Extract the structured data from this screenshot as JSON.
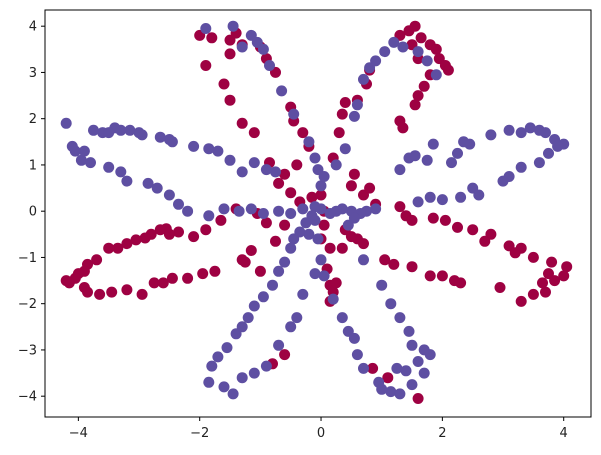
{
  "chart_data": {
    "type": "scatter",
    "title": "",
    "xlabel": "",
    "ylabel": "",
    "xlim": [
      -4.55,
      4.45
    ],
    "ylim": [
      -4.45,
      4.35
    ],
    "xticks": [
      -4,
      -2,
      0,
      2,
      4
    ],
    "yticks": [
      -4,
      -3,
      -2,
      -1,
      0,
      1,
      2,
      3,
      4
    ],
    "grid": false,
    "legend": "none",
    "series": [
      {
        "color": "#9e0142",
        "points": [
          [
            -2.0,
            3.8
          ],
          [
            -1.8,
            3.75
          ],
          [
            -1.5,
            3.7
          ],
          [
            -1.4,
            3.85
          ],
          [
            -1.3,
            3.6
          ],
          [
            -1.5,
            3.4
          ],
          [
            -1.9,
            3.15
          ],
          [
            -1.6,
            2.75
          ],
          [
            -1.5,
            2.4
          ],
          [
            -1.3,
            1.9
          ],
          [
            -1.1,
            1.7
          ],
          [
            -1.0,
            3.55
          ],
          [
            -0.9,
            3.3
          ],
          [
            -0.75,
            3.0
          ],
          [
            -0.5,
            2.25
          ],
          [
            -0.45,
            1.95
          ],
          [
            -0.3,
            1.7
          ],
          [
            -0.2,
            1.4
          ],
          [
            -0.4,
            1.0
          ],
          [
            -0.6,
            0.8
          ],
          [
            -0.85,
            1.05
          ],
          [
            -0.7,
            0.6
          ],
          [
            -0.5,
            0.4
          ],
          [
            -0.35,
            0.2
          ],
          [
            -0.15,
            0.3
          ],
          [
            0.0,
            0.35
          ],
          [
            0.05,
            0.0
          ],
          [
            0.2,
            1.15
          ],
          [
            0.3,
            1.7
          ],
          [
            0.35,
            2.1
          ],
          [
            0.6,
            2.4
          ],
          [
            0.75,
            2.75
          ],
          [
            0.8,
            3.05
          ],
          [
            0.4,
            2.35
          ],
          [
            1.3,
            3.8
          ],
          [
            1.45,
            3.9
          ],
          [
            1.55,
            4.0
          ],
          [
            1.65,
            3.75
          ],
          [
            1.8,
            3.6
          ],
          [
            1.9,
            3.5
          ],
          [
            1.95,
            3.3
          ],
          [
            2.05,
            3.15
          ],
          [
            2.1,
            3.05
          ],
          [
            1.8,
            2.95
          ],
          [
            1.7,
            2.7
          ],
          [
            1.6,
            2.5
          ],
          [
            1.55,
            2.3
          ],
          [
            1.3,
            1.95
          ],
          [
            1.35,
            1.8
          ],
          [
            1.6,
            3.3
          ],
          [
            1.5,
            3.6
          ],
          [
            0.9,
            0.15
          ],
          [
            0.7,
            0.35
          ],
          [
            0.5,
            0.55
          ],
          [
            0.55,
            0.8
          ],
          [
            0.8,
            0.5
          ],
          [
            1.3,
            0.1
          ],
          [
            1.4,
            -0.1
          ],
          [
            1.5,
            -0.2
          ],
          [
            1.85,
            -0.15
          ],
          [
            2.05,
            -0.2
          ],
          [
            2.25,
            -0.35
          ],
          [
            2.5,
            -0.4
          ],
          [
            2.8,
            -0.5
          ],
          [
            2.7,
            -0.65
          ],
          [
            3.1,
            -0.75
          ],
          [
            3.3,
            -0.8
          ],
          [
            3.2,
            -0.9
          ],
          [
            3.5,
            -1.0
          ],
          [
            3.8,
            -1.1
          ],
          [
            3.75,
            -1.35
          ],
          [
            4.05,
            -1.2
          ],
          [
            4.0,
            -1.4
          ],
          [
            3.65,
            -1.55
          ],
          [
            3.7,
            -1.75
          ],
          [
            3.5,
            -1.8
          ],
          [
            3.85,
            -1.5
          ],
          [
            3.3,
            -1.95
          ],
          [
            2.95,
            -1.65
          ],
          [
            2.3,
            -1.55
          ],
          [
            2.2,
            -1.5
          ],
          [
            2.0,
            -1.4
          ],
          [
            1.8,
            -1.4
          ],
          [
            1.5,
            -1.2
          ],
          [
            1.2,
            -1.15
          ],
          [
            1.05,
            -1.05
          ],
          [
            0.6,
            -0.6
          ],
          [
            0.5,
            -0.55
          ],
          [
            0.7,
            -0.7
          ],
          [
            0.4,
            -0.4
          ],
          [
            0.35,
            -0.8
          ],
          [
            0.15,
            -0.8
          ],
          [
            0.0,
            -0.6
          ],
          [
            0.05,
            -0.3
          ],
          [
            0.1,
            -1.25
          ],
          [
            0.15,
            -1.6
          ],
          [
            0.2,
            -1.75
          ],
          [
            0.25,
            -1.55
          ],
          [
            0.15,
            -1.95
          ],
          [
            0.85,
            -3.4
          ],
          [
            1.6,
            -4.05
          ],
          [
            1.1,
            -3.6
          ],
          [
            -0.8,
            -3.3
          ],
          [
            -0.6,
            -3.1
          ],
          [
            -1.0,
            -1.3
          ],
          [
            -1.25,
            -1.1
          ],
          [
            -1.15,
            -0.85
          ],
          [
            -0.75,
            -0.65
          ],
          [
            -0.6,
            -0.3
          ],
          [
            -0.9,
            -0.25
          ],
          [
            -1.05,
            -0.05
          ],
          [
            -1.4,
            0.05
          ],
          [
            -1.65,
            -0.2
          ],
          [
            -1.9,
            -0.4
          ],
          [
            -2.1,
            -0.55
          ],
          [
            -2.35,
            -0.45
          ],
          [
            -2.5,
            -0.5
          ],
          [
            -2.55,
            -0.38
          ],
          [
            -2.65,
            -0.4
          ],
          [
            -2.8,
            -0.5
          ],
          [
            -2.9,
            -0.58
          ],
          [
            -3.05,
            -0.62
          ],
          [
            -3.2,
            -0.7
          ],
          [
            -3.35,
            -0.8
          ],
          [
            -3.5,
            -0.8
          ],
          [
            -3.7,
            -1.05
          ],
          [
            -3.85,
            -1.15
          ],
          [
            -3.9,
            -1.3
          ],
          [
            -4.0,
            -1.35
          ],
          [
            -4.05,
            -1.45
          ],
          [
            -4.15,
            -1.55
          ],
          [
            -4.2,
            -1.5
          ],
          [
            -3.9,
            -1.65
          ],
          [
            -3.85,
            -1.75
          ],
          [
            -3.65,
            -1.8
          ],
          [
            -3.45,
            -1.75
          ],
          [
            -3.2,
            -1.7
          ],
          [
            -2.95,
            -1.8
          ],
          [
            -2.75,
            -1.55
          ],
          [
            -2.6,
            -1.55
          ],
          [
            -2.45,
            -1.45
          ],
          [
            -2.2,
            -1.45
          ],
          [
            -1.95,
            -1.35
          ],
          [
            -1.75,
            -1.3
          ],
          [
            -1.3,
            -1.05
          ]
        ]
      },
      {
        "color": "#5e4fa2",
        "points": [
          [
            -1.9,
            3.95
          ],
          [
            -1.45,
            4.0
          ],
          [
            -1.3,
            3.55
          ],
          [
            -1.15,
            3.8
          ],
          [
            -1.05,
            3.65
          ],
          [
            -0.95,
            3.5
          ],
          [
            -0.85,
            3.15
          ],
          [
            -0.65,
            2.6
          ],
          [
            -0.45,
            2.1
          ],
          [
            -0.2,
            1.5
          ],
          [
            -0.1,
            1.15
          ],
          [
            -0.05,
            0.9
          ],
          [
            0.0,
            0.55
          ],
          [
            0.05,
            0.75
          ],
          [
            0.25,
            1.0
          ],
          [
            0.4,
            1.35
          ],
          [
            0.55,
            2.05
          ],
          [
            0.6,
            2.3
          ],
          [
            0.7,
            2.85
          ],
          [
            0.8,
            3.1
          ],
          [
            0.9,
            3.25
          ],
          [
            1.05,
            3.45
          ],
          [
            1.2,
            3.65
          ],
          [
            1.35,
            3.55
          ],
          [
            1.6,
            3.45
          ],
          [
            1.75,
            3.25
          ],
          [
            1.9,
            2.95
          ],
          [
            1.45,
            1.15
          ],
          [
            1.55,
            1.2
          ],
          [
            1.75,
            1.1
          ],
          [
            2.15,
            1.05
          ],
          [
            2.45,
            1.45
          ],
          [
            2.8,
            1.65
          ],
          [
            3.1,
            1.75
          ],
          [
            3.3,
            1.7
          ],
          [
            3.45,
            1.8
          ],
          [
            3.6,
            1.75
          ],
          [
            3.7,
            1.7
          ],
          [
            3.85,
            1.55
          ],
          [
            4.0,
            1.45
          ],
          [
            3.9,
            1.4
          ],
          [
            3.75,
            1.25
          ],
          [
            3.6,
            1.05
          ],
          [
            3.3,
            0.95
          ],
          [
            3.1,
            0.75
          ],
          [
            3.0,
            0.65
          ],
          [
            2.5,
            0.5
          ],
          [
            2.3,
            0.3
          ],
          [
            2.0,
            0.25
          ],
          [
            1.8,
            0.3
          ],
          [
            1.6,
            0.2
          ],
          [
            2.6,
            0.35
          ],
          [
            2.35,
            1.5
          ],
          [
            2.25,
            1.25
          ],
          [
            1.85,
            1.45
          ],
          [
            1.3,
            0.9
          ],
          [
            0.9,
            0.05
          ],
          [
            0.75,
            0.0
          ],
          [
            0.65,
            -0.05
          ],
          [
            0.5,
            0.0
          ],
          [
            0.35,
            0.05
          ],
          [
            0.25,
            0.0
          ],
          [
            0.15,
            -0.05
          ],
          [
            0.0,
            0.05
          ],
          [
            -0.1,
            0.1
          ],
          [
            -0.15,
            -0.1
          ],
          [
            -0.25,
            -0.25
          ],
          [
            -0.35,
            -0.45
          ],
          [
            -0.45,
            -0.6
          ],
          [
            -0.5,
            -0.8
          ],
          [
            -0.6,
            -1.1
          ],
          [
            -0.7,
            -1.3
          ],
          [
            -0.8,
            -1.6
          ],
          [
            -0.95,
            -1.85
          ],
          [
            -1.1,
            -2.05
          ],
          [
            -1.2,
            -2.3
          ],
          [
            -1.3,
            -2.5
          ],
          [
            -1.4,
            -2.65
          ],
          [
            -1.55,
            -2.95
          ],
          [
            -1.7,
            -3.15
          ],
          [
            -1.8,
            -3.35
          ],
          [
            -1.85,
            -3.7
          ],
          [
            -1.6,
            -3.8
          ],
          [
            -1.45,
            -3.95
          ],
          [
            -1.3,
            -3.6
          ],
          [
            -1.1,
            -3.5
          ],
          [
            -0.9,
            -3.35
          ],
          [
            -0.7,
            -2.9
          ],
          [
            -0.5,
            -2.5
          ],
          [
            -0.4,
            -2.3
          ],
          [
            -0.3,
            -1.8
          ],
          [
            -0.1,
            -1.35
          ],
          [
            0.0,
            -1.05
          ],
          [
            0.05,
            -1.4
          ],
          [
            0.2,
            -1.9
          ],
          [
            0.35,
            -2.3
          ],
          [
            0.45,
            -2.6
          ],
          [
            0.55,
            -2.75
          ],
          [
            0.6,
            -3.1
          ],
          [
            0.7,
            -3.4
          ],
          [
            0.95,
            -3.7
          ],
          [
            1.15,
            -3.9
          ],
          [
            1.3,
            -3.95
          ],
          [
            1.5,
            -3.75
          ],
          [
            1.7,
            -3.5
          ],
          [
            1.8,
            -3.1
          ],
          [
            1.7,
            -3.0
          ],
          [
            1.5,
            -2.9
          ],
          [
            1.45,
            -2.6
          ],
          [
            1.3,
            -2.3
          ],
          [
            1.15,
            -2.0
          ],
          [
            1.0,
            -1.6
          ],
          [
            0.7,
            -1.05
          ],
          [
            0.45,
            -0.3
          ],
          [
            0.55,
            -0.15
          ],
          [
            1.0,
            -3.85
          ],
          [
            1.25,
            -3.4
          ],
          [
            1.6,
            -3.25
          ],
          [
            1.4,
            -3.45
          ],
          [
            -0.2,
            -0.5
          ],
          [
            -0.1,
            -0.2
          ],
          [
            -0.05,
            -0.6
          ],
          [
            -0.75,
            0.85
          ],
          [
            -0.9,
            0.9
          ],
          [
            -1.1,
            1.05
          ],
          [
            -1.3,
            0.85
          ],
          [
            -1.5,
            1.1
          ],
          [
            -1.7,
            1.3
          ],
          [
            -1.85,
            1.35
          ],
          [
            -2.1,
            1.4
          ],
          [
            -2.5,
            1.55
          ],
          [
            -2.65,
            1.6
          ],
          [
            -2.95,
            1.65
          ],
          [
            -3.15,
            1.75
          ],
          [
            -3.4,
            1.8
          ],
          [
            -3.6,
            1.7
          ],
          [
            -3.75,
            1.75
          ],
          [
            -3.9,
            1.3
          ],
          [
            -4.05,
            1.3
          ],
          [
            -4.2,
            1.9
          ],
          [
            -3.95,
            1.1
          ],
          [
            -3.8,
            1.05
          ],
          [
            -3.5,
            0.95
          ],
          [
            -3.3,
            0.85
          ],
          [
            -3.2,
            0.65
          ],
          [
            -2.85,
            0.6
          ],
          [
            -2.7,
            0.5
          ],
          [
            -2.5,
            0.35
          ],
          [
            -2.35,
            0.15
          ],
          [
            -2.2,
            0.0
          ],
          [
            -1.85,
            -0.1
          ],
          [
            -1.6,
            0.05
          ],
          [
            -1.35,
            0.0
          ],
          [
            -1.15,
            0.05
          ],
          [
            -0.95,
            -0.05
          ],
          [
            -0.7,
            0.0
          ],
          [
            -0.5,
            -0.05
          ],
          [
            -0.3,
            0.05
          ],
          [
            -3.5,
            1.7
          ],
          [
            -3.3,
            1.75
          ],
          [
            -3.0,
            1.7
          ],
          [
            -2.45,
            1.5
          ],
          [
            -4.1,
            1.4
          ]
        ]
      }
    ]
  }
}
